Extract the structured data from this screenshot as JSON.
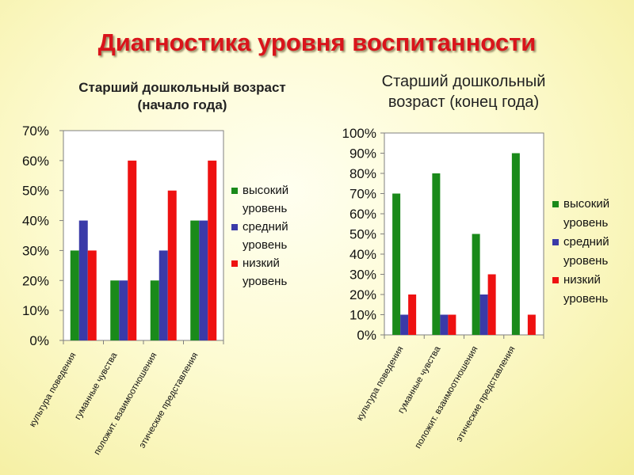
{
  "page": {
    "title": "Диагностика уровня воспитанности"
  },
  "colors": {
    "high": "#1a8a1a",
    "mid": "#3a3aa8",
    "low": "#ee1111"
  },
  "chart_data": [
    {
      "type": "bar",
      "title_lines": [
        "Старший дошкольный возраст",
        "(начало года)"
      ],
      "categories": [
        "культура поведения",
        "гуманные чувства",
        "положит. взаимоотношения",
        "этические представления"
      ],
      "series": [
        {
          "name_lines": [
            "высокий",
            "уровень"
          ],
          "values": [
            30,
            20,
            20,
            40
          ]
        },
        {
          "name_lines": [
            "средний",
            "уровень"
          ],
          "values": [
            40,
            20,
            30,
            40
          ]
        },
        {
          "name_lines": [
            "низкий",
            "уровень"
          ],
          "values": [
            30,
            60,
            50,
            60
          ]
        }
      ],
      "ylim": [
        0,
        70
      ],
      "yticks": [
        "0%",
        "10%",
        "20%",
        "30%",
        "40%",
        "50%",
        "60%",
        "70%"
      ],
      "legend": "right"
    },
    {
      "type": "bar",
      "title_lines": [
        "Старший дошкольный",
        "возраст (конец года)"
      ],
      "categories": [
        "культура поведения",
        "гуманные чувства",
        "положит. взаимоотношения",
        "этические представления"
      ],
      "series": [
        {
          "name_lines": [
            "высокий",
            "уровень"
          ],
          "values": [
            70,
            80,
            50,
            90
          ]
        },
        {
          "name_lines": [
            "средний",
            "уровень"
          ],
          "values": [
            10,
            10,
            20,
            0
          ]
        },
        {
          "name_lines": [
            "низкий",
            "уровень"
          ],
          "values": [
            20,
            10,
            30,
            10
          ]
        }
      ],
      "ylim": [
        0,
        100
      ],
      "yticks": [
        "0%",
        "10%",
        "20%",
        "30%",
        "40%",
        "50%",
        "60%",
        "70%",
        "80%",
        "90%",
        "100%"
      ],
      "legend": "right"
    }
  ]
}
